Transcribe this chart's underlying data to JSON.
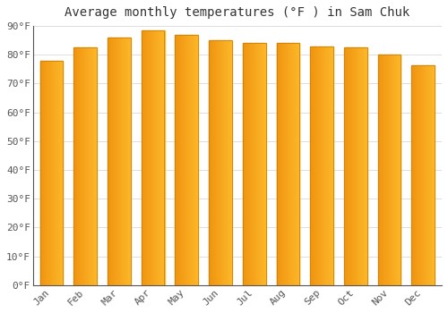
{
  "title": "Average monthly temperatures (°F ) in Sam Chuk",
  "months": [
    "Jan",
    "Feb",
    "Mar",
    "Apr",
    "May",
    "Jun",
    "Jul",
    "Aug",
    "Sep",
    "Oct",
    "Nov",
    "Dec"
  ],
  "values": [
    78,
    82.5,
    86,
    88.5,
    87,
    85,
    84,
    84,
    83,
    82.5,
    80,
    76.5
  ],
  "bar_color_main": "#FDB827",
  "bar_color_left": "#F0930A",
  "bar_color_edge": "#C8820A",
  "background_color": "#FFFFFF",
  "plot_bg_color": "#FFFFFF",
  "grid_color": "#DDDDDD",
  "ylim": [
    0,
    90
  ],
  "yticks": [
    0,
    10,
    20,
    30,
    40,
    50,
    60,
    70,
    80,
    90
  ],
  "ytick_labels": [
    "0°F",
    "10°F",
    "20°F",
    "30°F",
    "40°F",
    "50°F",
    "60°F",
    "70°F",
    "80°F",
    "90°F"
  ],
  "title_fontsize": 10,
  "tick_fontsize": 8,
  "font_family": "monospace"
}
